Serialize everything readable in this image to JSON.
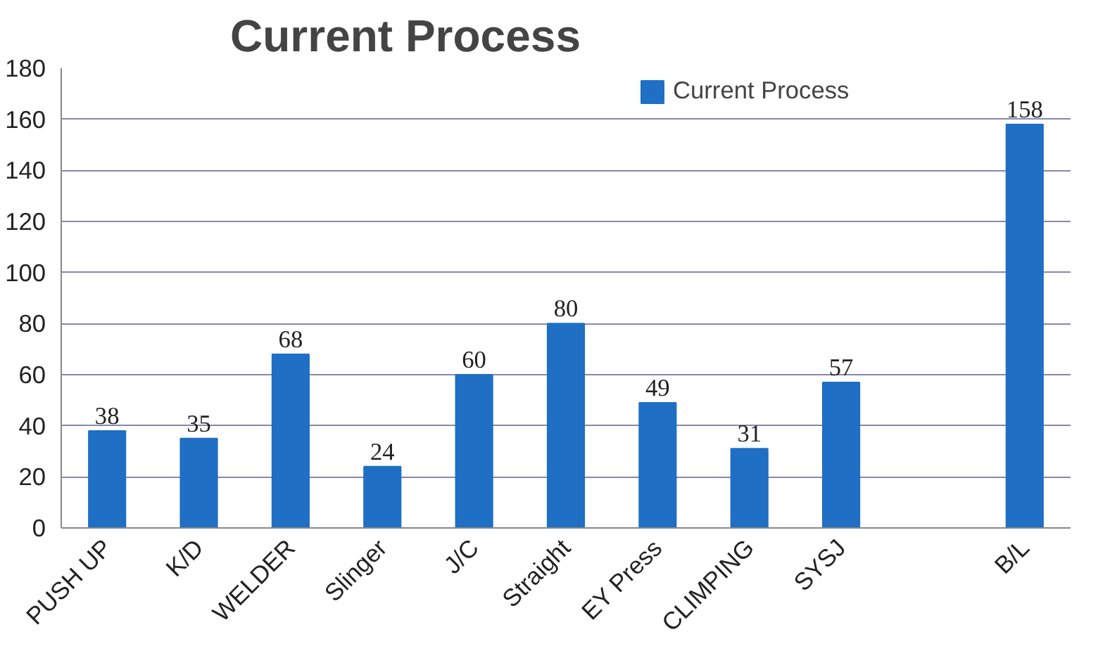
{
  "chart_data": {
    "type": "bar",
    "title": "Current Process",
    "categories": [
      "PUSH UP",
      "K/D",
      "WELDER",
      "Slinger",
      "J/C",
      "Straight",
      "EY Press",
      "CLIMPING",
      "SYSJ",
      null,
      "B/L"
    ],
    "series": [
      {
        "name": "Current Process",
        "color": "#1f6fc5",
        "values": [
          38,
          35,
          68,
          24,
          60,
          80,
          49,
          31,
          57,
          null,
          158
        ]
      }
    ],
    "ylim": [
      0,
      180
    ],
    "yticks": [
      0,
      20,
      40,
      60,
      80,
      100,
      120,
      140,
      160,
      180
    ],
    "grid": "y",
    "legend": "top right",
    "data_labels": true
  }
}
